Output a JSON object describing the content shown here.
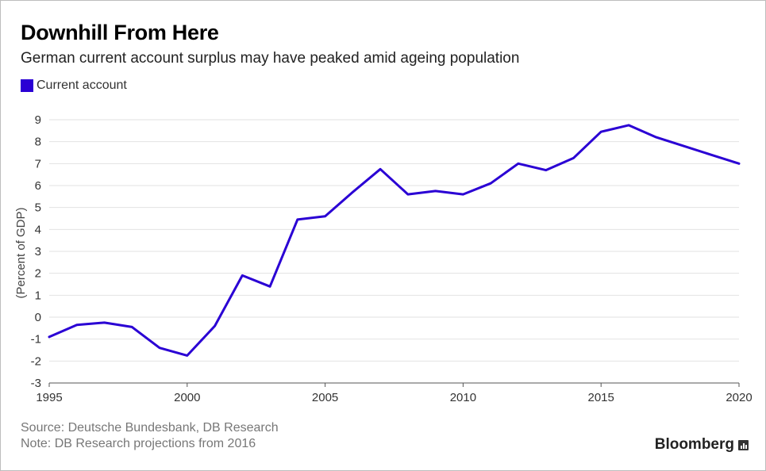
{
  "header": {
    "title": "Downhill From Here",
    "subtitle": "German current account surplus may have peaked amid ageing population"
  },
  "legend": {
    "label": "Current account",
    "color": "#2a00d4"
  },
  "footer": {
    "source": "Source: Deutsche Bundesbank, DB Research",
    "note": "Note: DB Research projections from 2016",
    "brand": "Bloomberg",
    "brand_icon": "bloomberg-chart-icon"
  },
  "chart_data": {
    "type": "line",
    "title": "Downhill From Here",
    "subtitle": "German current account surplus may have peaked amid ageing population",
    "xlabel": "",
    "ylabel": "(Percent of GDP)",
    "xlim": [
      1995,
      2020
    ],
    "ylim": [
      -3,
      9
    ],
    "x_ticks": [
      "1995",
      "2000",
      "2005",
      "2010",
      "2015",
      "2020"
    ],
    "y_ticks": [
      "9",
      "8",
      "7",
      "6",
      "5",
      "4",
      "3",
      "2",
      "1",
      "0",
      "-1",
      "-2",
      "-3"
    ],
    "grid": true,
    "legend_position": "top-left",
    "series": [
      {
        "name": "Current account",
        "color": "#2a00d4",
        "x": [
          1995,
          1996,
          1997,
          1998,
          1999,
          2000,
          2001,
          2002,
          2003,
          2004,
          2005,
          2006,
          2007,
          2008,
          2009,
          2010,
          2011,
          2012,
          2013,
          2014,
          2015,
          2016,
          2017,
          2018,
          2019,
          2020
        ],
        "y": [
          -0.9,
          -0.35,
          -0.25,
          -0.45,
          -1.4,
          -1.75,
          -0.4,
          1.9,
          1.4,
          4.45,
          4.6,
          5.7,
          6.75,
          5.6,
          5.75,
          5.6,
          6.1,
          7.0,
          6.7,
          7.25,
          8.45,
          8.75,
          8.2,
          7.8,
          7.4,
          7.0
        ]
      }
    ]
  }
}
